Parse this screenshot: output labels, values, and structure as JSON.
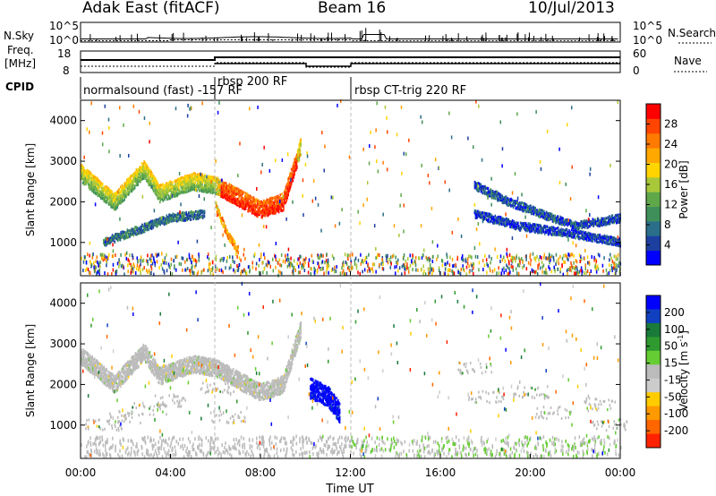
{
  "header": {
    "station": "Adak East (fitACF)",
    "beam": "Beam 16",
    "date": "10/Jul/2013"
  },
  "panels": {
    "sky": {
      "label": "N.Sky",
      "tick_top": "10^5",
      "tick_bottom": "10^0",
      "right_label": "N.Search",
      "right_tick_top": "10^5",
      "right_tick_bottom": "10^0"
    },
    "freq": {
      "label_line1": "Freq.",
      "label_line2": "[MHz]",
      "tick_top": "18",
      "tick_bottom": "8",
      "right_label": "Nave",
      "right_tick_top": "60",
      "right_tick_bottom": "0"
    },
    "cpid": {
      "label": "CPID",
      "modes": [
        "normalsound (fast) -157 RF",
        "rbsp 200 RF",
        "rbsp CT-trig 220 RF"
      ]
    }
  },
  "axes": {
    "ylabel": "Slant Range [km]",
    "xlabel": "Time UT",
    "yticks": [
      "1000",
      "2000",
      "3000",
      "4000"
    ],
    "xticks": [
      "00:00",
      "04:00",
      "08:00",
      "12:00",
      "16:00",
      "20:00",
      "00:00"
    ]
  },
  "colorbars": {
    "power": {
      "label": "Power [dB]",
      "ticks": [
        "4",
        "8",
        "12",
        "16",
        "20",
        "24",
        "28"
      ],
      "colors": [
        "#0000ff",
        "#1c3fa0",
        "#2a6e8a",
        "#3f8f5a",
        "#5fa84a",
        "#a8c83a",
        "#ffd400",
        "#ffa800",
        "#ff7a00",
        "#ff4400",
        "#ff0000"
      ]
    },
    "velocity": {
      "label": "Velocity [m s",
      "label_sup": "-1",
      "label_end": "]",
      "ticks": [
        "200",
        "100",
        "50",
        "15",
        "-15",
        "-50",
        "-100",
        "-200"
      ],
      "colors": [
        "#0000ff",
        "#1040c0",
        "#1a7a3a",
        "#2f9a2f",
        "#66cc33",
        "#bbbbbb",
        "#cccccc",
        "#ffcc00",
        "#ff9900",
        "#ff6600",
        "#ff2200"
      ]
    }
  },
  "chart_data": {
    "type": "heatmap",
    "title": "Adak East (fitACF)",
    "xlabel": "Time UT",
    "ylabel": "Slant Range [km]",
    "x_range_hours": [
      0,
      24
    ],
    "y_range_km": [
      180,
      4500
    ],
    "mode_changes_hours": [
      6,
      12
    ],
    "series": [
      {
        "name": "Power [dB]",
        "bands": [
          {
            "t": [
              0.0,
              1.5,
              2.8,
              3.5,
              5.0,
              6.0,
              7.0,
              8.0,
              9.0,
              9.8
            ],
            "r_km": [
              2700,
              2000,
              2800,
              2200,
              2500,
              2400,
              2100,
              1800,
              2000,
              3400
            ],
            "value": 18
          },
          {
            "t": [
              1.0,
              2.0,
              3.0,
              4.0,
              5.5
            ],
            "r_km": [
              1000,
              1200,
              1400,
              1600,
              1700
            ],
            "value": 8
          },
          {
            "t": [
              6.0,
              6.5,
              7.0
            ],
            "r_km": [
              1900,
              1200,
              800
            ],
            "value": 22
          },
          {
            "t": [
              17.5,
              19.0,
              20.5,
              22.0,
              24.0
            ],
            "r_km": [
              2400,
              2000,
              1700,
              1400,
              1600
            ],
            "value": 6
          },
          {
            "t": [
              17.5,
              19.5,
              22.0,
              24.0
            ],
            "r_km": [
              1700,
              1400,
              1200,
              1000
            ],
            "value": 5
          }
        ]
      },
      {
        "name": "Velocity [m s-1]",
        "bands": [
          {
            "t": [
              0.0,
              1.5,
              2.8,
              3.5,
              5.0,
              6.0,
              7.0,
              8.0,
              9.0,
              9.8
            ],
            "r_km": [
              2700,
              2000,
              2800,
              2200,
              2500,
              2400,
              2100,
              1800,
              2000,
              3400
            ],
            "value": 0
          },
          {
            "t": [
              10.2,
              11.0,
              11.5
            ],
            "r_km": [
              1900,
              1700,
              1300
            ],
            "value": 200
          }
        ]
      }
    ]
  }
}
